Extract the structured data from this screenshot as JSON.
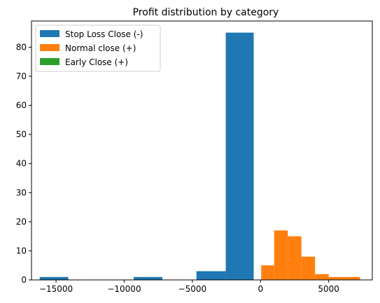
{
  "chart_data": {
    "type": "bar",
    "title": "Profit distribution by category",
    "xlabel": "",
    "ylabel": "",
    "xlim": [
      -16800,
      8200
    ],
    "ylim": [
      0,
      89
    ],
    "xticks": [
      -15000,
      -10000,
      -5000,
      0,
      5000
    ],
    "xtick_labels": [
      "−15000",
      "−10000",
      "−5000",
      "0",
      "5000"
    ],
    "yticks": [
      0,
      10,
      20,
      30,
      40,
      50,
      60,
      70,
      80
    ],
    "ytick_labels": [
      "0",
      "10",
      "20",
      "30",
      "40",
      "50",
      "60",
      "70",
      "80"
    ],
    "grid": false,
    "legend_position": "top-left",
    "series": [
      {
        "name": "Stop Loss Close (-)",
        "color": "#1f77b4",
        "bins": [
          {
            "x0": -16200,
            "x1": -14100,
            "count": 1
          },
          {
            "x0": -9300,
            "x1": -7200,
            "count": 1
          },
          {
            "x0": -4700,
            "x1": -2550,
            "count": 3
          },
          {
            "x0": -2550,
            "x1": -500,
            "count": 85
          }
        ]
      },
      {
        "name": "Normal close (+)",
        "color": "#ff7f0e",
        "bins": [
          {
            "x0": 50,
            "x1": 1000,
            "count": 5
          },
          {
            "x0": 1000,
            "x1": 2000,
            "count": 17
          },
          {
            "x0": 2000,
            "x1": 3000,
            "count": 15
          },
          {
            "x0": 3000,
            "x1": 4000,
            "count": 8
          },
          {
            "x0": 4000,
            "x1": 5000,
            "count": 2
          },
          {
            "x0": 5000,
            "x1": 6000,
            "count": 1
          },
          {
            "x0": 6000,
            "x1": 7300,
            "count": 1
          }
        ]
      },
      {
        "name": "Early Close (+)",
        "color": "#2ca02c",
        "bins": []
      }
    ]
  }
}
